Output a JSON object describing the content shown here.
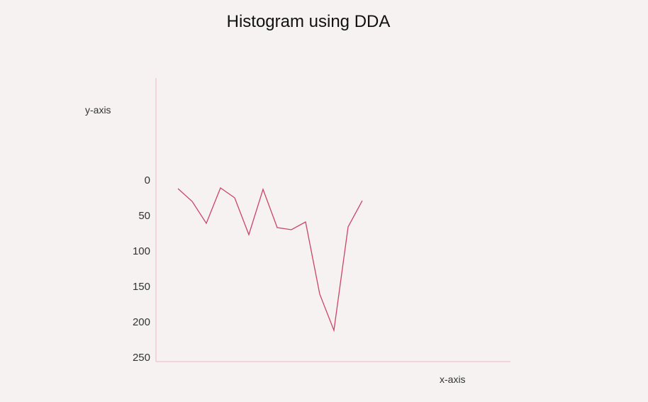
{
  "chart_data": {
    "type": "line",
    "title": "Histogram using DDA",
    "xlabel": "x-axis",
    "ylabel": "y-axis",
    "ylim": [
      0,
      250
    ],
    "y_inverted": true,
    "yticks": [
      "0",
      "50",
      "100",
      "150",
      "200",
      "250"
    ],
    "grid": false,
    "x": [
      1,
      2,
      3,
      4,
      5,
      6,
      7,
      8,
      9,
      10,
      11,
      12,
      13,
      14
    ],
    "values": [
      6,
      24,
      55,
      5,
      19,
      71,
      7,
      61,
      64,
      53,
      155,
      206,
      60,
      23
    ],
    "colors": {
      "line": "#cc4466",
      "axis": "#f0b8c2"
    }
  }
}
